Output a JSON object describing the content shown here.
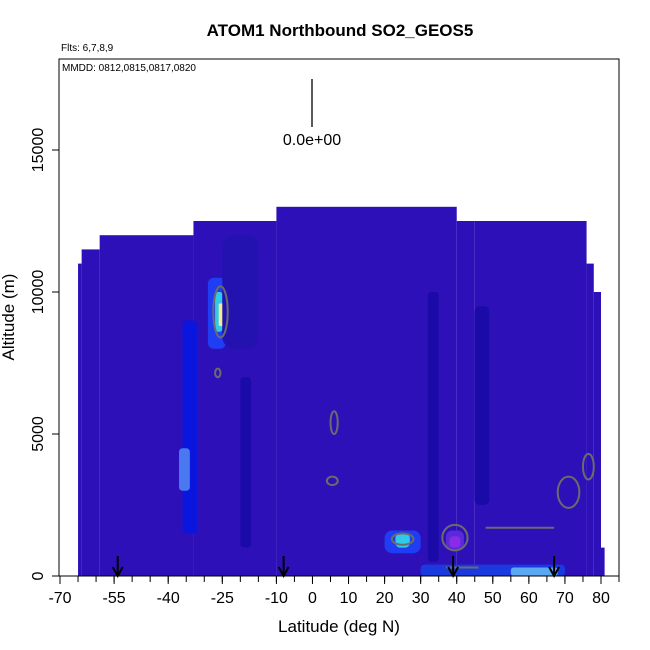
{
  "chart_data": {
    "type": "heatmap",
    "title": "ATOM1 Northbound SO2_GEOS5",
    "flights_note": "Flts: 6,7,8,9",
    "dates_note": "MMDD: 0812,0815,0817,0820",
    "scale_label": "0.0e+00",
    "xlabel": "Latitude (deg N)",
    "ylabel": "Altitude (m)",
    "xlim": [
      -70,
      80
    ],
    "ylim": [
      0,
      17500
    ],
    "x_ticks": [
      {
        "value": -70,
        "label": "-70"
      },
      {
        "value": -55,
        "label": "-55"
      },
      {
        "value": -40,
        "label": "-40"
      },
      {
        "value": -25,
        "label": "-25"
      },
      {
        "value": -10,
        "label": "-10"
      },
      {
        "value": 0,
        "label": "0"
      },
      {
        "value": 10,
        "label": "10"
      },
      {
        "value": 20,
        "label": "20"
      },
      {
        "value": 30,
        "label": "30"
      },
      {
        "value": 40,
        "label": "40"
      },
      {
        "value": 50,
        "label": "50"
      },
      {
        "value": 60,
        "label": "60"
      },
      {
        "value": 70,
        "label": "70"
      },
      {
        "value": 80,
        "label": "80"
      }
    ],
    "y_ticks": [
      {
        "value": 0,
        "label": "0"
      },
      {
        "value": 5000,
        "label": "5000"
      },
      {
        "value": 10000,
        "label": "10000"
      },
      {
        "value": 15000,
        "label": "15000"
      }
    ],
    "background_color": "#2e10b8",
    "outline_steps": [
      {
        "x_from": -65,
        "x_to": -64,
        "top": 11000
      },
      {
        "x_from": -64,
        "x_to": -59,
        "top": 11500
      },
      {
        "x_from": -59,
        "x_to": -33,
        "top": 12000
      },
      {
        "x_from": -33,
        "x_to": -10,
        "top": 12500
      },
      {
        "x_from": -10,
        "x_to": 40,
        "top": 13000
      },
      {
        "x_from": 40,
        "x_to": 45,
        "top": 12500
      },
      {
        "x_from": 45,
        "x_to": 76,
        "top": 12500
      },
      {
        "x_from": 76,
        "x_to": 78,
        "top": 11000
      },
      {
        "x_from": 78,
        "x_to": 80,
        "top": 10000
      },
      {
        "x_from": 80,
        "x_to": 81,
        "top": 1000
      }
    ],
    "features": [
      {
        "x": [
          -36,
          -32
        ],
        "y": [
          1500,
          9000
        ],
        "color": "#0a16dd"
      },
      {
        "x": [
          -37,
          -34
        ],
        "y": [
          3000,
          4500
        ],
        "color": "#4a78f0"
      },
      {
        "x": [
          -29,
          -24
        ],
        "y": [
          8000,
          10500
        ],
        "color": "#1f3df2"
      },
      {
        "x": [
          -27,
          -25
        ],
        "y": [
          8600,
          10000
        ],
        "color": "#31c9ea"
      },
      {
        "x": [
          -26,
          -24.5
        ],
        "y": [
          8800,
          9600
        ],
        "color": "#f0ed8f"
      },
      {
        "x": [
          -20,
          -17
        ],
        "y": [
          1000,
          7000
        ],
        "color": "#1a0aa8"
      },
      {
        "x": [
          -25,
          -15
        ],
        "y": [
          8000,
          12000
        ],
        "color": "#2412b0"
      },
      {
        "x": [
          32,
          35
        ],
        "y": [
          500,
          10000
        ],
        "color": "#1a0aa8"
      },
      {
        "x": [
          45,
          49
        ],
        "y": [
          2500,
          9500
        ],
        "color": "#1a0aa8"
      },
      {
        "x": [
          20,
          30
        ],
        "y": [
          800,
          1600
        ],
        "color": "#1f3df2"
      },
      {
        "x": [
          23,
          27
        ],
        "y": [
          1000,
          1500
        ],
        "color": "#31c9ea"
      },
      {
        "x": [
          37,
          42
        ],
        "y": [
          900,
          1600
        ],
        "color": "#5b2ad8"
      },
      {
        "x": [
          38,
          41
        ],
        "y": [
          1000,
          1400
        ],
        "color": "#8a2be8"
      },
      {
        "x": [
          30,
          70
        ],
        "y": [
          0,
          400
        ],
        "color": "#1a3ae0"
      },
      {
        "x": [
          55,
          68
        ],
        "y": [
          0,
          300
        ],
        "color": "#5aa8f2"
      }
    ],
    "contours": [
      {
        "x": [
          -27.5,
          -23.5
        ],
        "y": [
          8400,
          10200
        ]
      },
      {
        "x": [
          -27,
          -25.5
        ],
        "y": [
          7000,
          7300
        ]
      },
      {
        "x": [
          5,
          7
        ],
        "y": [
          5000,
          5800
        ]
      },
      {
        "x": [
          4,
          7
        ],
        "y": [
          3200,
          3500
        ]
      },
      {
        "x": [
          22,
          28
        ],
        "y": [
          1100,
          1500
        ]
      },
      {
        "x": [
          36,
          43
        ],
        "y": [
          900,
          1800
        ]
      },
      {
        "x": [
          68,
          74
        ],
        "y": [
          2400,
          3500
        ]
      },
      {
        "x": [
          75,
          78
        ],
        "y": [
          3400,
          4300
        ]
      }
    ],
    "contour_lines": [
      {
        "x": [
          48,
          67
        ],
        "y": [
          1700,
          1700
        ]
      },
      {
        "x": [
          37,
          46
        ],
        "y": [
          300,
          300
        ]
      }
    ],
    "flight_markers": [
      {
        "x": -54
      },
      {
        "x": -8
      },
      {
        "x": 39
      },
      {
        "x": 67
      }
    ]
  }
}
